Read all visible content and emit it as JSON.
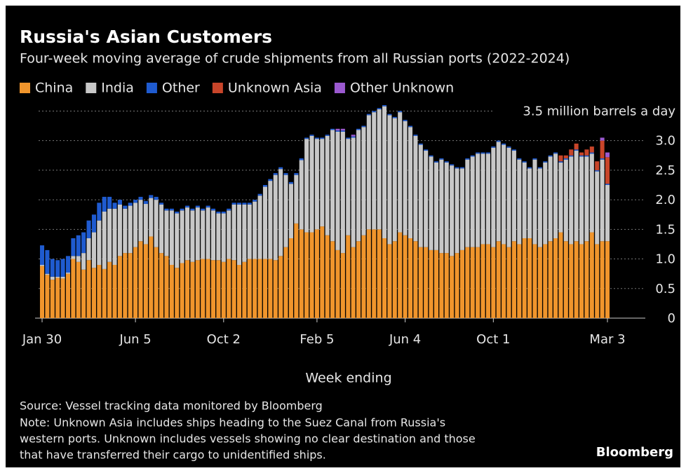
{
  "chart_data": {
    "type": "stacked-bar",
    "title": "Russia's Asian Customers",
    "subtitle": "Four-week moving average of crude shipments from all Russian ports (2022-2024)",
    "x_label": "Week ending",
    "source": "Source: Vessel tracking data monitored by Bloomberg",
    "note": [
      "Note: Unknown Asia includes ships heading to the Suez Canal from Russia's",
      "western ports. Unknown includes vessels showing no clear destination and those",
      "that have transferred their cargo to unidentified ships."
    ],
    "brand": "Bloomberg",
    "categories": [
      "Jan 30",
      null,
      null,
      null,
      null,
      null,
      null,
      null,
      null,
      null,
      null,
      null,
      null,
      null,
      null,
      null,
      null,
      null,
      "Jun 5",
      null,
      null,
      null,
      null,
      null,
      null,
      null,
      null,
      null,
      null,
      null,
      null,
      null,
      null,
      null,
      null,
      "Oct 2",
      null,
      null,
      null,
      null,
      null,
      null,
      null,
      null,
      null,
      null,
      null,
      null,
      null,
      null,
      null,
      null,
      null,
      "Feb 5",
      null,
      null,
      null,
      null,
      null,
      null,
      null,
      null,
      null,
      null,
      null,
      null,
      null,
      null,
      null,
      null,
      "Jun 4",
      null,
      null,
      null,
      null,
      null,
      null,
      null,
      null,
      null,
      null,
      null,
      null,
      null,
      null,
      null,
      null,
      "Oct 1",
      null,
      null,
      null,
      null,
      null,
      null,
      null,
      null,
      null,
      null,
      null,
      null,
      null,
      null,
      null,
      null,
      null,
      null,
      null,
      null,
      null,
      "Mar 3"
    ],
    "series": [
      {
        "name": "China",
        "color": "#f0952c",
        "values": [
          0.88,
          0.73,
          0.65,
          0.68,
          0.67,
          0.75,
          1.0,
          0.95,
          0.82,
          0.98,
          0.85,
          0.9,
          0.83,
          0.95,
          0.9,
          1.05,
          1.1,
          1.1,
          1.2,
          1.3,
          1.25,
          1.38,
          1.2,
          1.1,
          1.05,
          0.9,
          0.85,
          0.93,
          0.98,
          0.95,
          0.98,
          1.0,
          1.0,
          0.98,
          0.98,
          0.95,
          1.0,
          0.98,
          0.9,
          0.95,
          1.0,
          1.0,
          1.0,
          1.0,
          1.0,
          0.98,
          1.05,
          1.2,
          1.35,
          1.6,
          1.5,
          1.45,
          1.45,
          1.5,
          1.55,
          1.4,
          1.3,
          1.15,
          1.1,
          1.4,
          1.2,
          1.3,
          1.4,
          1.5,
          1.5,
          1.5,
          1.35,
          1.25,
          1.3,
          1.45,
          1.4,
          1.35,
          1.3,
          1.2,
          1.2,
          1.15,
          1.15,
          1.1,
          1.1,
          1.05,
          1.1,
          1.15,
          1.2,
          1.2,
          1.2,
          1.25,
          1.25,
          1.2,
          1.3,
          1.25,
          1.2,
          1.3,
          1.25,
          1.35,
          1.35,
          1.25,
          1.2,
          1.25,
          1.3,
          1.35,
          1.45,
          1.3,
          1.25,
          1.3,
          1.25,
          1.3,
          1.45,
          1.25,
          1.3,
          1.3
        ]
      },
      {
        "name": "India",
        "color": "#c8c8c8",
        "values": [
          0.02,
          0.02,
          0.05,
          0.02,
          0.03,
          0.02,
          0.05,
          0.1,
          0.28,
          0.37,
          0.6,
          0.75,
          0.97,
          0.9,
          0.95,
          0.87,
          0.75,
          0.8,
          0.75,
          0.7,
          0.68,
          0.65,
          0.8,
          0.82,
          0.77,
          0.92,
          0.92,
          0.89,
          0.89,
          0.87,
          0.89,
          0.82,
          0.87,
          0.84,
          0.79,
          0.82,
          0.82,
          0.94,
          1.02,
          0.97,
          0.92,
          0.97,
          1.07,
          1.22,
          1.32,
          1.44,
          1.47,
          1.22,
          0.92,
          0.82,
          1.17,
          1.58,
          1.63,
          1.53,
          1.48,
          1.68,
          1.88,
          2.0,
          2.05,
          1.63,
          1.85,
          1.88,
          1.83,
          1.93,
          1.98,
          2.03,
          2.23,
          2.18,
          2.08,
          2.03,
          1.93,
          1.88,
          1.78,
          1.73,
          1.63,
          1.58,
          1.48,
          1.58,
          1.53,
          1.53,
          1.43,
          1.38,
          1.48,
          1.53,
          1.58,
          1.53,
          1.53,
          1.68,
          1.68,
          1.68,
          1.68,
          1.53,
          1.43,
          1.28,
          1.18,
          1.43,
          1.33,
          1.38,
          1.43,
          1.43,
          1.18,
          1.38,
          1.48,
          1.53,
          1.48,
          1.43,
          1.33,
          1.23,
          1.38,
          0.95
        ]
      },
      {
        "name": "Other",
        "color": "#1f5bd0",
        "values": [
          0.33,
          0.4,
          0.3,
          0.28,
          0.3,
          0.28,
          0.3,
          0.35,
          0.35,
          0.3,
          0.3,
          0.3,
          0.25,
          0.2,
          0.1,
          0.08,
          0.05,
          0.05,
          0.05,
          0.05,
          0.05,
          0.05,
          0.05,
          0.03,
          0.03,
          0.03,
          0.03,
          0.03,
          0.03,
          0.03,
          0.03,
          0.03,
          0.03,
          0.03,
          0.03,
          0.03,
          0.03,
          0.03,
          0.03,
          0.03,
          0.03,
          0.03,
          0.03,
          0.03,
          0.03,
          0.03,
          0.03,
          0.03,
          0.03,
          0.03,
          0.03,
          0.02,
          0.02,
          0.02,
          0.02,
          0.02,
          0.02,
          0.02,
          0.02,
          0.02,
          0.02,
          0.02,
          0.02,
          0.02,
          0.02,
          0.02,
          0.02,
          0.02,
          0.02,
          0.02,
          0.02,
          0.02,
          0.02,
          0.02,
          0.02,
          0.02,
          0.02,
          0.02,
          0.02,
          0.02,
          0.02,
          0.02,
          0.02,
          0.02,
          0.02,
          0.02,
          0.02,
          0.02,
          0.02,
          0.02,
          0.02,
          0.02,
          0.02,
          0.02,
          0.02,
          0.02,
          0.02,
          0.02,
          0.02,
          0.02,
          0.02,
          0.02,
          0.02,
          0.02,
          0.02,
          0.02,
          0.02,
          0.02,
          0.02,
          0.02
        ]
      },
      {
        "name": "Unknown Asia",
        "color": "#c8452a",
        "values": [
          0,
          0,
          0,
          0,
          0,
          0,
          0,
          0,
          0,
          0,
          0,
          0,
          0,
          0,
          0,
          0,
          0,
          0,
          0,
          0,
          0,
          0,
          0,
          0,
          0,
          0,
          0,
          0,
          0,
          0,
          0,
          0,
          0,
          0,
          0,
          0,
          0,
          0,
          0,
          0,
          0,
          0,
          0,
          0,
          0,
          0,
          0,
          0,
          0,
          0,
          0,
          0,
          0,
          0,
          0,
          0,
          0,
          0,
          0,
          0,
          0,
          0,
          0,
          0,
          0,
          0,
          0,
          0,
          0,
          0,
          0,
          0,
          0,
          0,
          0,
          0,
          0,
          0,
          0,
          0,
          0,
          0,
          0,
          0,
          0,
          0,
          0,
          0,
          0,
          0,
          0,
          0,
          0,
          0,
          0,
          0,
          0,
          0,
          0,
          0,
          0.1,
          0.05,
          0.1,
          0.1,
          0.05,
          0.1,
          0.1,
          0.15,
          0.3,
          0.45
        ]
      },
      {
        "name": "Other Unknown",
        "color": "#9b59d0",
        "values": [
          0,
          0,
          0,
          0,
          0,
          0,
          0,
          0,
          0,
          0,
          0,
          0,
          0,
          0,
          0,
          0,
          0,
          0,
          0,
          0,
          0,
          0,
          0,
          0,
          0,
          0,
          0,
          0,
          0,
          0,
          0,
          0,
          0,
          0,
          0,
          0,
          0,
          0,
          0,
          0,
          0,
          0,
          0,
          0,
          0,
          0,
          0,
          0,
          0,
          0,
          0,
          0,
          0,
          0,
          0,
          0,
          0,
          0.03,
          0.03,
          0,
          0.03,
          0,
          0,
          0,
          0,
          0,
          0,
          0,
          0,
          0,
          0,
          0,
          0,
          0,
          0,
          0,
          0,
          0,
          0,
          0,
          0,
          0,
          0,
          0,
          0,
          0,
          0,
          0,
          0,
          0,
          0,
          0,
          0,
          0,
          0,
          0,
          0,
          0,
          0,
          0,
          0,
          0,
          0,
          0,
          0,
          0,
          0,
          0,
          0.05,
          0.08
        ]
      }
    ],
    "ylim": [
      0,
      3.6
    ],
    "yticks": [
      0,
      0.5,
      {
        "value": 1,
        "label": "1.0"
      },
      1.5,
      {
        "value": 2,
        "label": "2.0"
      },
      2.5,
      {
        "value": 3,
        "label": "3.0"
      },
      {
        "value": 3.5,
        "label": "3.5 million barrels a day"
      }
    ],
    "grid": true
  }
}
